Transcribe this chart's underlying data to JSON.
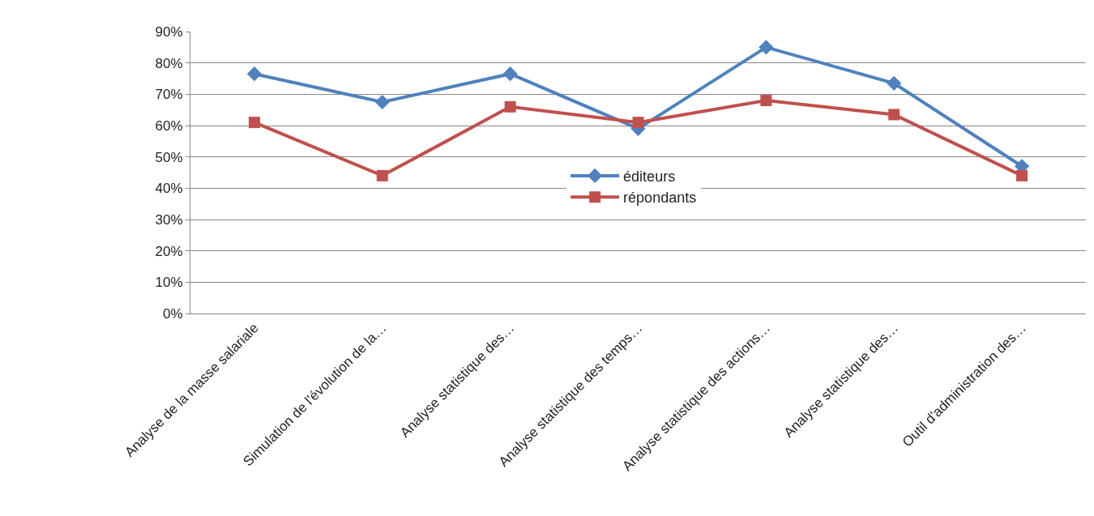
{
  "chart_data": {
    "type": "line",
    "categories": [
      "Analyse de la masse salariale",
      "Simulation de l'évolution de la…",
      "Analyse statistique des…",
      "Analyse statistique des temps…",
      "Analyse statistique des actions…",
      "Analyse statistique des…",
      "Outil d'administration des…"
    ],
    "series": [
      {
        "name": "éditeurs",
        "color": "#4f81bd",
        "marker": "diamond",
        "values": [
          76.5,
          67.5,
          76.5,
          59,
          85,
          73.5,
          47
        ]
      },
      {
        "name": "répondants",
        "color": "#c0504d",
        "marker": "square",
        "values": [
          61,
          44,
          66,
          61,
          68,
          63.5,
          44
        ]
      }
    ],
    "ylim": [
      0,
      90
    ],
    "yticks": [
      {
        "value": 0,
        "label": "0%"
      },
      {
        "value": 10,
        "label": "10%"
      },
      {
        "value": 20,
        "label": "20%"
      },
      {
        "value": 30,
        "label": "30%"
      },
      {
        "value": 40,
        "label": "40%"
      },
      {
        "value": 50,
        "label": "50%"
      },
      {
        "value": 60,
        "label": "60%"
      },
      {
        "value": 70,
        "label": "70%"
      },
      {
        "value": 80,
        "label": "80%"
      },
      {
        "value": 90,
        "label": "90%"
      }
    ],
    "grid": "y",
    "legend": "center",
    "line_style": "solid"
  }
}
